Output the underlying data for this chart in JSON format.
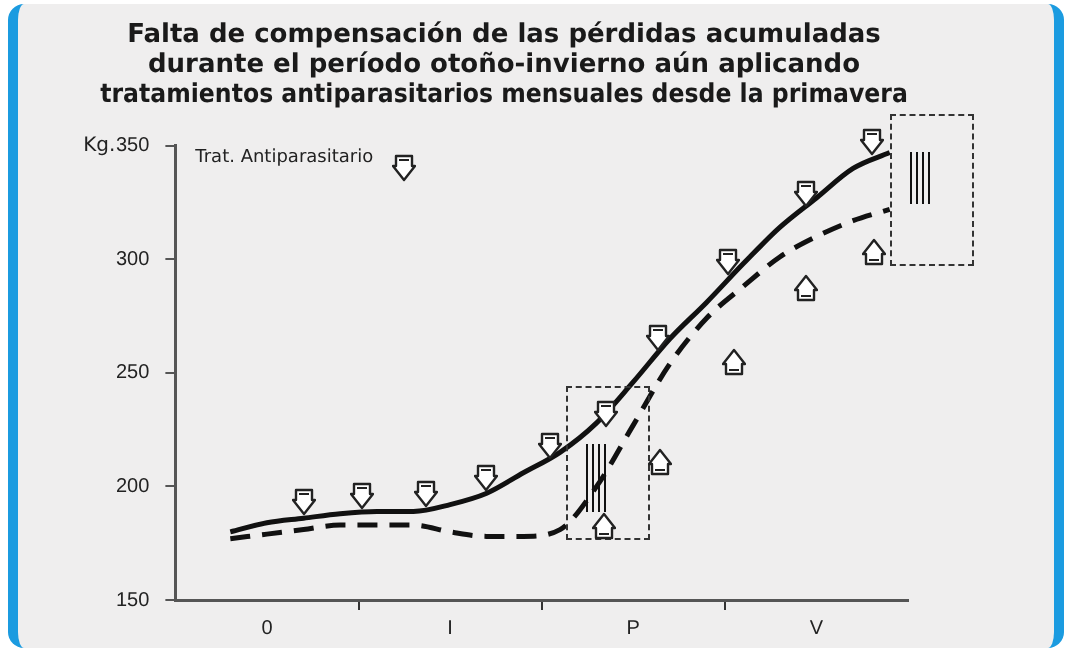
{
  "chart_data": {
    "type": "line",
    "title": "Falta de compensación de las pérdidas acumuladas\ndurante el período otoño-invierno aún aplicando\ntratamientos antiparasitarios mensuales desde la primavera",
    "ylabel": "Kg.",
    "annotations": [
      "Trat. Antiparasitario"
    ],
    "categories": [
      null,
      null,
      "0",
      null,
      null,
      null,
      null,
      "I",
      null,
      null,
      null,
      null,
      "P",
      null,
      null,
      null,
      null,
      "V",
      null,
      null
    ],
    "ylim": [
      150,
      350
    ],
    "yticks": [
      150,
      200,
      250,
      300,
      350
    ],
    "grid": false,
    "legend": false,
    "marker": "none",
    "series": [
      {
        "color": "#111111",
        "line_style": "solid",
        "values": [
          null,
          180,
          184,
          186,
          188,
          189,
          189,
          192,
          197,
          206,
          215,
          228,
          246,
          265,
          281,
          298,
          314,
          327,
          340,
          347
        ]
      },
      {
        "color": "#111111",
        "line_style": "dashed",
        "values": [
          null,
          177,
          179,
          181,
          183,
          183,
          183,
          180,
          178,
          178,
          181,
          200,
          227,
          254,
          274,
          288,
          301,
          310,
          317,
          322
        ]
      }
    ]
  }
}
